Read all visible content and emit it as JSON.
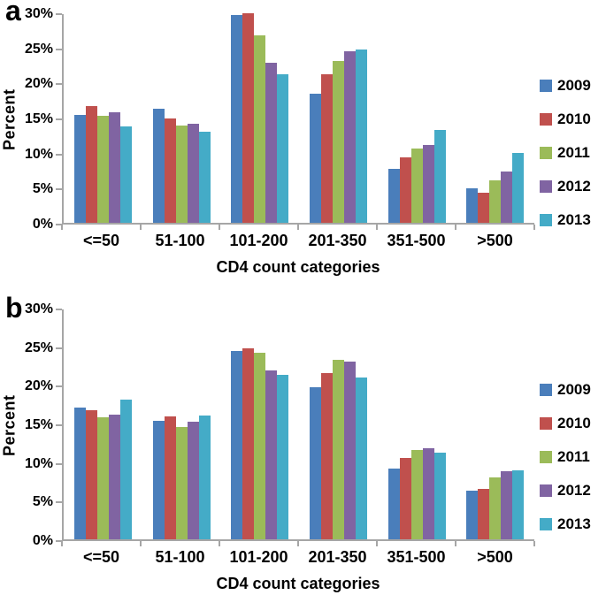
{
  "figure_title": "",
  "chart_data": [
    {
      "type": "bar",
      "panel_label": "a",
      "xlabel": "CD4 count categories",
      "ylabel": "Percent",
      "ylim": [
        0,
        30
      ],
      "y_tick_step": 5,
      "y_ticks": [
        "0%",
        "5%",
        "10%",
        "15%",
        "20%",
        "25%",
        "30%"
      ],
      "grid": false,
      "legend_position": "right",
      "categories": [
        "<=50",
        "51-100",
        "101-200",
        "201-350",
        "351-500",
        ">500"
      ],
      "series": [
        {
          "name": "2009",
          "color": "#4A7EBB",
          "values": [
            15.5,
            16.4,
            29.9,
            18.5,
            7.7,
            5.0
          ]
        },
        {
          "name": "2010",
          "color": "#C0504D",
          "values": [
            16.8,
            15.0,
            30.1,
            21.3,
            9.4,
            4.3
          ]
        },
        {
          "name": "2011",
          "color": "#9BBB59",
          "values": [
            15.4,
            14.0,
            27.0,
            23.3,
            10.7,
            6.1
          ]
        },
        {
          "name": "2012",
          "color": "#8064A2",
          "values": [
            15.9,
            14.3,
            23.0,
            24.7,
            11.2,
            7.4
          ]
        },
        {
          "name": "2013",
          "color": "#44ABC7",
          "values": [
            13.8,
            13.1,
            21.4,
            24.9,
            13.4,
            10.1
          ]
        }
      ]
    },
    {
      "type": "bar",
      "panel_label": "b",
      "xlabel": "CD4 count categories",
      "ylabel": "Percent",
      "ylim": [
        0,
        30
      ],
      "y_tick_step": 5,
      "y_ticks": [
        "0%",
        "5%",
        "10%",
        "15%",
        "20%",
        "25%",
        "30%"
      ],
      "grid": false,
      "legend_position": "right",
      "categories": [
        "<=50",
        "51-100",
        "101-200",
        "201-350",
        "351-500",
        ">500"
      ],
      "series": [
        {
          "name": "2009",
          "color": "#4A7EBB",
          "values": [
            17.2,
            15.5,
            24.6,
            19.9,
            9.2,
            6.3
          ]
        },
        {
          "name": "2010",
          "color": "#C0504D",
          "values": [
            16.8,
            16.0,
            24.9,
            21.7,
            10.6,
            6.6
          ]
        },
        {
          "name": "2011",
          "color": "#9BBB59",
          "values": [
            15.9,
            14.6,
            24.4,
            23.4,
            11.7,
            8.1
          ]
        },
        {
          "name": "2012",
          "color": "#8064A2",
          "values": [
            16.3,
            15.3,
            22.0,
            23.2,
            11.9,
            8.9
          ]
        },
        {
          "name": "2013",
          "color": "#44ABC7",
          "values": [
            18.2,
            16.2,
            21.5,
            21.1,
            11.3,
            9.0
          ]
        }
      ]
    }
  ],
  "axis_color": "#a6a6a6"
}
